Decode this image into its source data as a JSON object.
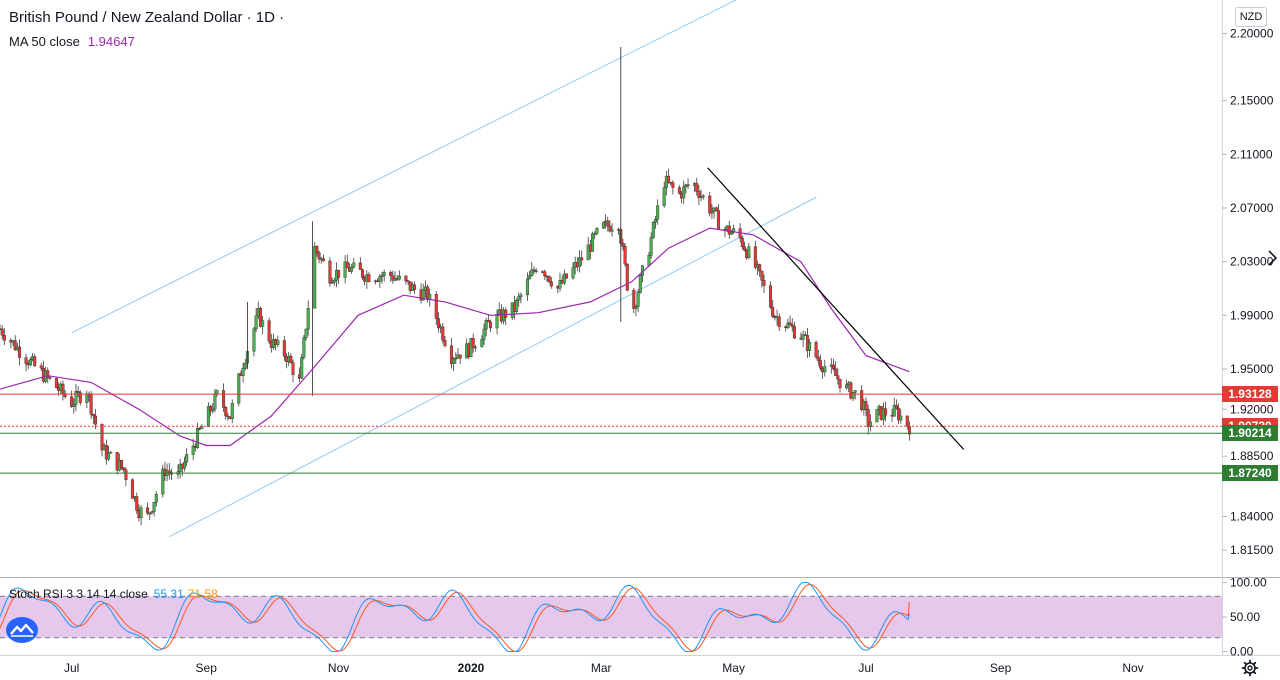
{
  "header": {
    "symbol_title": "British Pound / New Zealand Dollar · 1D ·",
    "ma_label": "MA 50 close",
    "ma_value": "1.94647",
    "currency": "NZD"
  },
  "stoch_legend": {
    "label": "Stoch RSI 3 3 14 14 close",
    "k_value": "55.31",
    "d_value": "71.58"
  },
  "colors": {
    "up": "#26a69a",
    "down": "#ef5350",
    "candle_up_body": "#4caf50",
    "candle_down_body": "#e53935",
    "ma": "#9c27b0",
    "channel": "#90caf9",
    "trendline": "#000000",
    "resistance": "#e53935",
    "support": "#388e3c",
    "stoch_k": "#2196f3",
    "stoch_d": "#ff5722",
    "stoch_band": "#e1bee7"
  },
  "price_tags": [
    {
      "label": "1.93128",
      "color": "#e53935",
      "price": 1.93128
    },
    {
      "label": "1.90730",
      "color": "#e53935",
      "price": 1.9073
    },
    {
      "label": "1.90214",
      "color": "#2e7d32",
      "price": 1.90214
    },
    {
      "label": "1.87240",
      "color": "#2e7d32",
      "price": 1.8724
    }
  ],
  "chart_data": {
    "type": "candlestick",
    "title": "British Pound / New Zealand Dollar · 1D",
    "ylim": [
      1.795,
      2.225
    ],
    "y_ticks": [
      "2.20000",
      "2.15000",
      "2.11000",
      "2.07000",
      "2.03000",
      "1.99000",
      "1.95000",
      "1.92000",
      "1.88500",
      "1.84000",
      "1.81500"
    ],
    "y_tick_values": [
      2.2,
      2.15,
      2.11,
      2.07,
      2.03,
      1.99,
      1.95,
      1.92,
      1.885,
      1.84,
      1.815
    ],
    "x_labels": [
      "Jul",
      "Sep",
      "Nov",
      "2020",
      "Mar",
      "May",
      "Jul",
      "Sep",
      "Nov"
    ],
    "x_label_dates": [
      "2019-07-01",
      "2019-09-01",
      "2019-11-01",
      "2020-01-01",
      "2020-03-01",
      "2020-05-01",
      "2020-07-01",
      "2020-09-01",
      "2020-11-01"
    ],
    "date_range": [
      "2019-05-29",
      "2020-12-12"
    ],
    "close_path": [
      [
        "2019-05-29",
        1.98
      ],
      [
        "2019-06-12",
        1.955
      ],
      [
        "2019-06-25",
        1.935
      ],
      [
        "2019-07-01",
        1.925
      ],
      [
        "2019-07-08",
        1.935
      ],
      [
        "2019-07-15",
        1.89
      ],
      [
        "2019-07-25",
        1.875
      ],
      [
        "2019-08-01",
        1.845
      ],
      [
        "2019-08-05",
        1.84
      ],
      [
        "2019-08-13",
        1.875
      ],
      [
        "2019-08-19",
        1.87
      ],
      [
        "2019-08-28",
        1.9
      ],
      [
        "2019-09-03",
        1.92
      ],
      [
        "2019-09-06",
        1.93
      ],
      [
        "2019-09-12",
        1.915
      ],
      [
        "2019-09-18",
        1.955
      ],
      [
        "2019-09-25",
        1.99
      ],
      [
        "2019-10-01",
        1.97
      ],
      [
        "2019-10-08",
        1.96
      ],
      [
        "2019-10-14",
        1.94
      ],
      [
        "2019-10-21",
        2.04
      ],
      [
        "2019-10-28",
        2.02
      ],
      [
        "2019-11-06",
        2.025
      ],
      [
        "2019-11-14",
        2.02
      ],
      [
        "2019-11-25",
        2.02
      ],
      [
        "2019-12-05",
        2.01
      ],
      [
        "2019-12-12",
        2.005
      ],
      [
        "2019-12-23",
        1.96
      ],
      [
        "2019-12-31",
        1.965
      ],
      [
        "2020-01-10",
        1.985
      ],
      [
        "2020-01-21",
        1.995
      ],
      [
        "2020-02-01",
        2.03
      ],
      [
        "2020-02-10",
        2.01
      ],
      [
        "2020-02-20",
        2.03
      ],
      [
        "2020-03-01",
        2.055
      ],
      [
        "2020-03-09",
        2.06
      ],
      [
        "2020-03-15",
        1.99
      ],
      [
        "2020-03-23",
        2.04
      ],
      [
        "2020-03-30",
        2.09
      ],
      [
        "2020-04-06",
        2.08
      ],
      [
        "2020-04-12",
        2.09
      ],
      [
        "2020-04-18",
        2.075
      ],
      [
        "2020-04-26",
        2.055
      ],
      [
        "2020-05-03",
        2.05
      ],
      [
        "2020-05-10",
        2.03
      ],
      [
        "2020-05-20",
        1.99
      ],
      [
        "2020-06-01",
        1.975
      ],
      [
        "2020-06-10",
        1.955
      ],
      [
        "2020-06-17",
        1.945
      ],
      [
        "2020-06-22",
        1.935
      ],
      [
        "2020-06-28",
        1.93
      ],
      [
        "2020-07-02",
        1.91
      ],
      [
        "2020-07-07",
        1.917
      ],
      [
        "2020-07-15",
        1.918
      ],
      [
        "2020-07-21",
        1.9073
      ]
    ],
    "ma50_path": [
      [
        "2019-05-29",
        1.935
      ],
      [
        "2019-06-20",
        1.945
      ],
      [
        "2019-07-10",
        1.94
      ],
      [
        "2019-08-01",
        1.92
      ],
      [
        "2019-08-20",
        1.9
      ],
      [
        "2019-09-01",
        1.893
      ],
      [
        "2019-09-12",
        1.893
      ],
      [
        "2019-10-01",
        1.915
      ],
      [
        "2019-10-20",
        1.95
      ],
      [
        "2019-11-10",
        1.99
      ],
      [
        "2019-12-01",
        2.005
      ],
      [
        "2019-12-20",
        2.0
      ],
      [
        "2020-01-10",
        1.99
      ],
      [
        "2020-02-01",
        1.992
      ],
      [
        "2020-02-25",
        2.0
      ],
      [
        "2020-03-15",
        2.015
      ],
      [
        "2020-04-01",
        2.04
      ],
      [
        "2020-04-20",
        2.055
      ],
      [
        "2020-05-10",
        2.05
      ],
      [
        "2020-06-01",
        2.03
      ],
      [
        "2020-06-15",
        1.995
      ],
      [
        "2020-07-01",
        1.96
      ],
      [
        "2020-07-21",
        1.948
      ]
    ],
    "channel_upper": [
      [
        "2019-07-01",
        1.977
      ],
      [
        "2020-05-02",
        2.225
      ]
    ],
    "channel_lower": [
      [
        "2019-08-15",
        1.825
      ],
      [
        "2020-06-08",
        2.078
      ]
    ],
    "trendline": [
      [
        "2020-04-19",
        2.1
      ],
      [
        "2020-08-15",
        1.89
      ]
    ],
    "horizontal_levels": [
      {
        "price": 1.93128,
        "color": "#e53935",
        "style": "solid"
      },
      {
        "price": 1.9073,
        "color": "#e53935",
        "style": "dotted"
      },
      {
        "price": 1.90214,
        "color": "#2e7d32",
        "style": "solid"
      },
      {
        "price": 1.8724,
        "color": "#2e7d32",
        "style": "solid"
      }
    ],
    "spikes": [
      {
        "date": "2020-03-10",
        "high": 2.19,
        "low": 1.985
      },
      {
        "date": "2019-10-20",
        "high": 2.06,
        "low": 1.93
      },
      {
        "date": "2019-09-20",
        "high": 2.0,
        "low": 1.95
      }
    ],
    "stoch_rsi": {
      "ylim": [
        -5,
        105
      ],
      "y_ticks": [
        "100.00",
        "50.00",
        "0.00"
      ],
      "y_tick_values": [
        100,
        50,
        0
      ],
      "band": [
        20,
        80
      ],
      "k_last": 55.31,
      "d_last": 71.58
    }
  }
}
